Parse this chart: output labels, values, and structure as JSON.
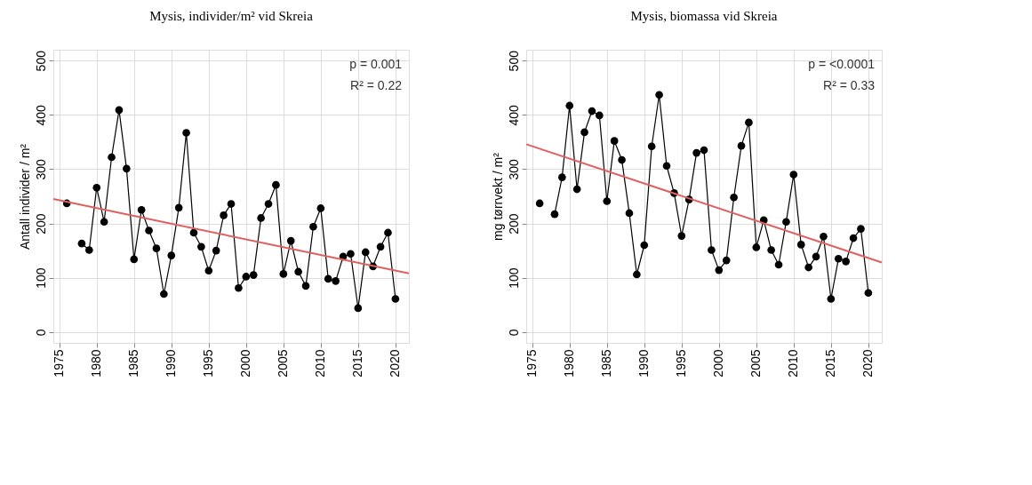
{
  "chart_data": [
    {
      "type": "line",
      "title": "Mysis, individer/m² vid Skreia",
      "ylabel": "Antall individer / m²",
      "annotations": [
        "p = 0.001",
        "R² = 0.22"
      ],
      "xlim": [
        1974.2,
        2021.8
      ],
      "ylim": [
        -20,
        520
      ],
      "xticks": [
        1975,
        1980,
        1985,
        1990,
        1995,
        2000,
        2005,
        2010,
        2015,
        2020
      ],
      "yticks": [
        0,
        100,
        200,
        300,
        400,
        500
      ],
      "grid": true,
      "series": [
        {
          "color": "#000000",
          "marker": "circle",
          "x": [
            1976,
            1977,
            1978,
            1979,
            1980,
            1981,
            1982,
            1983,
            1984,
            1985,
            1986,
            1987,
            1988,
            1989,
            1990,
            1991,
            1992,
            1993,
            1994,
            1995,
            1996,
            1997,
            1998,
            1999,
            2000,
            2001,
            2002,
            2003,
            2004,
            2005,
            2006,
            2007,
            2008,
            2009,
            2010,
            2011,
            2012,
            2013,
            2014,
            2015,
            2016,
            2017,
            2018,
            2019,
            2020
          ],
          "values": [
            237,
            null,
            163,
            151,
            266,
            203,
            322,
            409,
            301,
            134,
            225,
            187,
            154,
            70,
            141,
            229,
            367,
            183,
            157,
            113,
            150,
            215,
            236,
            81,
            102,
            105,
            210,
            236,
            271,
            107,
            168,
            111,
            85,
            194,
            228,
            98,
            94,
            139,
            144,
            44,
            147,
            121,
            157,
            183,
            61
          ]
        },
        {
          "type": "line",
          "color": "#e06060",
          "marker": "none",
          "x": [
            1974.2,
            2021.8
          ],
          "values": [
            245,
            108
          ]
        }
      ]
    },
    {
      "type": "line",
      "title": "Mysis, biomassa vid Skreia",
      "ylabel": "mg tørrvekt / m²",
      "annotations": [
        "p = <0.0001",
        "R² = 0.33"
      ],
      "xlim": [
        1974.2,
        2021.8
      ],
      "ylim": [
        -20,
        520
      ],
      "xticks": [
        1975,
        1980,
        1985,
        1990,
        1995,
        2000,
        2005,
        2010,
        2015,
        2020
      ],
      "yticks": [
        0,
        100,
        200,
        300,
        400,
        500
      ],
      "grid": true,
      "series": [
        {
          "color": "#000000",
          "marker": "circle",
          "x": [
            1976,
            1977,
            1978,
            1979,
            1980,
            1981,
            1982,
            1983,
            1984,
            1985,
            1986,
            1987,
            1988,
            1989,
            1990,
            1991,
            1992,
            1993,
            1994,
            1995,
            1996,
            1997,
            1998,
            1999,
            2000,
            2001,
            2002,
            2003,
            2004,
            2005,
            2006,
            2007,
            2008,
            2009,
            2010,
            2011,
            2012,
            2013,
            2014,
            2015,
            2016,
            2017,
            2018,
            2019,
            2020
          ],
          "values": [
            237,
            null,
            217,
            285,
            417,
            263,
            368,
            407,
            399,
            241,
            352,
            317,
            219,
            106,
            160,
            342,
            437,
            306,
            256,
            177,
            244,
            330,
            335,
            151,
            114,
            132,
            248,
            343,
            386,
            156,
            206,
            151,
            124,
            203,
            290,
            161,
            119,
            139,
            176,
            61,
            135,
            130,
            173,
            190,
            72
          ]
        },
        {
          "type": "line",
          "color": "#e06060",
          "marker": "none",
          "x": [
            1974.2,
            2021.8
          ],
          "values": [
            346,
            128
          ]
        }
      ]
    }
  ]
}
